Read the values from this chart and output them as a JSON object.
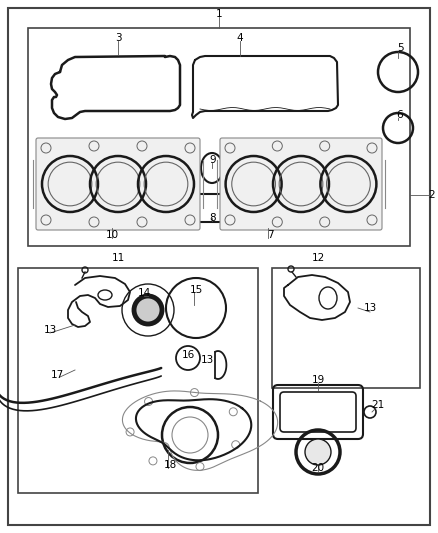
{
  "bg_color": "#ffffff",
  "line_color": "#1a1a1a",
  "gray_color": "#888888",
  "light_gray": "#cccccc"
}
